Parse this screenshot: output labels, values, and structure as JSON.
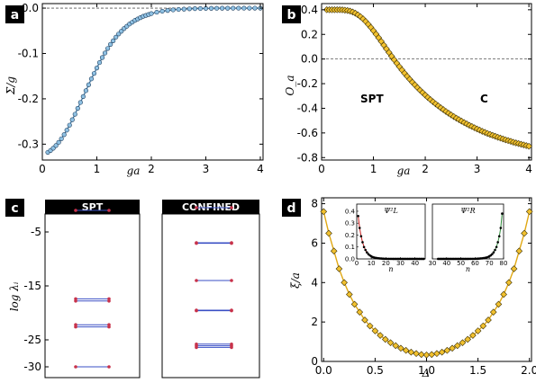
{
  "panels": {
    "a": {
      "label": "a"
    },
    "b": {
      "label": "b"
    },
    "c": {
      "label": "c"
    },
    "d": {
      "label": "d"
    }
  },
  "chart_data": [
    {
      "id": "a",
      "type": "scatter",
      "xlabel": "ga",
      "ylabel": "Σ/g",
      "xlim": [
        0,
        4.05
      ],
      "ylim": [
        -0.335,
        0.01
      ],
      "xticks": [
        "0",
        "1",
        "2",
        "3",
        "4"
      ],
      "yticks": [
        "-0.3",
        "-0.2",
        "-0.1",
        "0.0"
      ],
      "reference_line": 0,
      "marker_color": "#8fc1e3",
      "curve_color": "#2f6e9e",
      "x": [
        0.1,
        0.15,
        0.2,
        0.25,
        0.3,
        0.35,
        0.4,
        0.45,
        0.5,
        0.55,
        0.6,
        0.65,
        0.7,
        0.75,
        0.8,
        0.85,
        0.9,
        0.95,
        1.0,
        1.05,
        1.1,
        1.15,
        1.2,
        1.25,
        1.3,
        1.35,
        1.4,
        1.45,
        1.5,
        1.55,
        1.6,
        1.65,
        1.7,
        1.75,
        1.8,
        1.85,
        1.9,
        1.95,
        2.0,
        2.1,
        2.2,
        2.3,
        2.4,
        2.5,
        2.6,
        2.7,
        2.8,
        2.9,
        3.0,
        3.1,
        3.2,
        3.3,
        3.4,
        3.5,
        3.6,
        3.7,
        3.8,
        3.9,
        4.0
      ],
      "y": [
        -0.318,
        -0.314,
        -0.309,
        -0.303,
        -0.296,
        -0.288,
        -0.279,
        -0.269,
        -0.258,
        -0.246,
        -0.234,
        -0.221,
        -0.208,
        -0.195,
        -0.182,
        -0.169,
        -0.156,
        -0.144,
        -0.132,
        -0.12,
        -0.109,
        -0.099,
        -0.089,
        -0.08,
        -0.072,
        -0.064,
        -0.057,
        -0.051,
        -0.045,
        -0.04,
        -0.035,
        -0.031,
        -0.027,
        -0.024,
        -0.021,
        -0.018,
        -0.016,
        -0.014,
        -0.012,
        -0.009,
        -0.0068,
        -0.0051,
        -0.0038,
        -0.0028,
        -0.0021,
        -0.0015,
        -0.0011,
        -0.0008,
        -0.0006,
        -0.0004,
        -0.0003,
        -0.0002,
        -0.00015,
        -0.0001,
        -7e-05,
        -5e-05,
        -3e-05,
        -2e-05,
        -1e-05
      ]
    },
    {
      "id": "b",
      "type": "scatter",
      "xlabel": "ga",
      "ylabel": "O_a",
      "xlim": [
        0,
        4.05
      ],
      "ylim": [
        -0.82,
        0.45
      ],
      "xticks": [
        "0",
        "1",
        "2",
        "3",
        "4"
      ],
      "yticks": [
        "-0.8",
        "-0.6",
        "-0.4",
        "-0.2",
        "0.0",
        "0.2",
        "0.4"
      ],
      "reference_line": 0,
      "marker_color": "#f2c12e",
      "curve_color": "#5a4a10",
      "annotations": [
        "SPT",
        "C"
      ],
      "x": [
        0.1,
        0.15,
        0.2,
        0.25,
        0.3,
        0.35,
        0.4,
        0.45,
        0.5,
        0.55,
        0.6,
        0.65,
        0.7,
        0.75,
        0.8,
        0.85,
        0.9,
        0.95,
        1.0,
        1.05,
        1.1,
        1.15,
        1.2,
        1.25,
        1.3,
        1.35,
        1.4,
        1.45,
        1.5,
        1.55,
        1.6,
        1.65,
        1.7,
        1.75,
        1.8,
        1.85,
        1.9,
        1.95,
        2.0,
        2.05,
        2.1,
        2.15,
        2.2,
        2.25,
        2.3,
        2.35,
        2.4,
        2.45,
        2.5,
        2.55,
        2.6,
        2.65,
        2.7,
        2.75,
        2.8,
        2.85,
        2.9,
        2.95,
        3.0,
        3.05,
        3.1,
        3.15,
        3.2,
        3.25,
        3.3,
        3.35,
        3.4,
        3.45,
        3.5,
        3.55,
        3.6,
        3.65,
        3.7,
        3.75,
        3.8,
        3.85,
        3.9,
        3.95,
        4.0
      ],
      "y": [
        0.4,
        0.4,
        0.4,
        0.4,
        0.4,
        0.4,
        0.399,
        0.397,
        0.394,
        0.389,
        0.382,
        0.372,
        0.359,
        0.344,
        0.326,
        0.305,
        0.282,
        0.257,
        0.23,
        0.202,
        0.173,
        0.143,
        0.113,
        0.083,
        0.053,
        0.023,
        -0.006,
        -0.034,
        -0.062,
        -0.089,
        -0.115,
        -0.14,
        -0.164,
        -0.188,
        -0.21,
        -0.232,
        -0.253,
        -0.273,
        -0.293,
        -0.312,
        -0.33,
        -0.347,
        -0.364,
        -0.38,
        -0.396,
        -0.411,
        -0.426,
        -0.44,
        -0.454,
        -0.467,
        -0.48,
        -0.492,
        -0.504,
        -0.516,
        -0.527,
        -0.538,
        -0.548,
        -0.558,
        -0.568,
        -0.577,
        -0.587,
        -0.595,
        -0.604,
        -0.612,
        -0.62,
        -0.627,
        -0.635,
        -0.642,
        -0.649,
        -0.656,
        -0.662,
        -0.668,
        -0.675,
        -0.681,
        -0.686,
        -0.692,
        -0.697,
        -0.703,
        -0.708
      ]
    },
    {
      "id": "c",
      "type": "scatter",
      "ylabel": "log λᵢ",
      "ylim": [
        -32,
        0
      ],
      "yticks": [
        "-5",
        "-15",
        "-25",
        "-30"
      ],
      "subpanels": [
        {
          "title": "SPT",
          "levels": [
            -1,
            -17.4,
            -17.8,
            -22.2,
            -22.6,
            -30
          ]
        },
        {
          "title": "CONFINED",
          "levels": [
            -0.5,
            -7,
            -7.1,
            -14,
            -19.5,
            -19.6,
            -25.8,
            -26.1,
            -26.4
          ]
        }
      ],
      "line_color": "#3a4fc4",
      "point_color": "#c8324a"
    },
    {
      "id": "d",
      "type": "scatter",
      "xlabel": "Δ",
      "ylabel": "ξ/a",
      "xlim": [
        -0.02,
        2.02
      ],
      "ylim": [
        0,
        8.3
      ],
      "xticks": [
        "0.0",
        "0.5",
        "1.0",
        "1.5",
        "2.0"
      ],
      "yticks": [
        "0",
        "2",
        "4",
        "6",
        "8"
      ],
      "marker_color": "#f2c12e",
      "curve_color": "#e0a814",
      "x": [
        0.0,
        0.05,
        0.1,
        0.15,
        0.2,
        0.25,
        0.3,
        0.35,
        0.4,
        0.45,
        0.5,
        0.55,
        0.6,
        0.65,
        0.7,
        0.75,
        0.8,
        0.85,
        0.9,
        0.95,
        1.0,
        1.05,
        1.1,
        1.15,
        1.2,
        1.25,
        1.3,
        1.35,
        1.4,
        1.45,
        1.5,
        1.55,
        1.6,
        1.65,
        1.7,
        1.75,
        1.8,
        1.85,
        1.9,
        1.95,
        2.0
      ],
      "y": [
        7.6,
        6.5,
        5.6,
        4.7,
        4.0,
        3.4,
        2.9,
        2.5,
        2.1,
        1.8,
        1.55,
        1.32,
        1.12,
        0.95,
        0.8,
        0.67,
        0.56,
        0.47,
        0.4,
        0.35,
        0.33,
        0.35,
        0.4,
        0.47,
        0.56,
        0.67,
        0.8,
        0.95,
        1.12,
        1.32,
        1.55,
        1.8,
        2.1,
        2.5,
        2.9,
        3.4,
        4.0,
        4.7,
        5.6,
        6.5,
        7.6
      ],
      "insets": [
        {
          "title": "Ψ²L",
          "xlabel": "n",
          "xticks": [
            "0",
            "10",
            "20",
            "30",
            "40"
          ],
          "yticks": [
            "0.0",
            "0.1",
            "0.2",
            "0.3",
            "0.4"
          ],
          "xlim": [
            0,
            47
          ],
          "ylim": [
            0,
            0.46
          ],
          "line_color": "#c81e1e",
          "x": [
            1,
            2,
            3,
            4,
            5,
            6,
            7,
            8,
            9,
            10,
            11,
            12,
            13,
            14,
            15,
            16,
            17,
            18,
            19,
            20,
            21,
            22,
            23,
            24,
            25,
            26,
            27,
            28,
            29,
            30,
            31,
            32,
            33,
            34,
            35,
            36,
            37,
            38,
            39,
            40,
            41,
            42,
            43,
            44,
            45,
            46
          ],
          "y": [
            0.36,
            0.26,
            0.19,
            0.14,
            0.1,
            0.075,
            0.055,
            0.04,
            0.03,
            0.022,
            0.016,
            0.012,
            0.009,
            0.007,
            0.005,
            0.004,
            0.003,
            0.002,
            0.0015,
            0.001,
            0.001,
            0.0008,
            0.0006,
            0.0005,
            0.0004,
            0.0003,
            0.0003,
            0.0002,
            0.0002,
            0.0002,
            0.0001,
            0.0001,
            0.0001,
            0.0001,
            0.0001,
            0.0001,
            0.0001,
            0.0001,
            0.0001,
            0.0001,
            0.0001,
            0.0001,
            0.0001,
            0.0001,
            0.0001,
            0.0001
          ]
        },
        {
          "title": "Ψ²R",
          "xlabel": "n",
          "xticks": [
            "30",
            "40",
            "50",
            "60",
            "70",
            "80"
          ],
          "yticks": [],
          "xlim": [
            30,
            80
          ],
          "ylim": [
            0,
            0.46
          ],
          "line_color": "#2e8b3a",
          "x": [
            34,
            35,
            36,
            37,
            38,
            39,
            40,
            41,
            42,
            43,
            44,
            45,
            46,
            47,
            48,
            49,
            50,
            51,
            52,
            53,
            54,
            55,
            56,
            57,
            58,
            59,
            60,
            61,
            62,
            63,
            64,
            65,
            66,
            67,
            68,
            69,
            70,
            71,
            72,
            73,
            74,
            75,
            76,
            77,
            78,
            79
          ],
          "y": [
            0.0001,
            0.0001,
            0.0001,
            0.0001,
            0.0001,
            0.0001,
            0.0001,
            0.0001,
            0.0001,
            0.0001,
            0.0001,
            0.0001,
            0.0001,
            0.0001,
            0.0001,
            0.0001,
            0.0002,
            0.0002,
            0.0002,
            0.0003,
            0.0003,
            0.0004,
            0.0005,
            0.0006,
            0.0008,
            0.001,
            0.001,
            0.0015,
            0.002,
            0.003,
            0.004,
            0.005,
            0.007,
            0.009,
            0.012,
            0.016,
            0.022,
            0.03,
            0.04,
            0.055,
            0.075,
            0.1,
            0.14,
            0.19,
            0.26,
            0.38
          ]
        }
      ]
    }
  ]
}
